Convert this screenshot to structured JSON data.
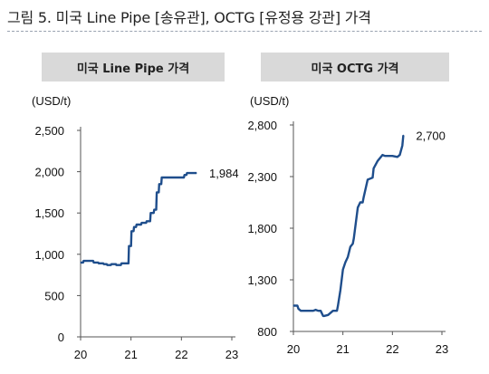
{
  "figure_title": "그림 5. 미국 Line Pipe [송유관], OCTG [유정용 강관] 가격",
  "chart_data": [
    {
      "type": "line",
      "title": "미국 Line Pipe 가격",
      "ylabel": "(USD/t)",
      "ylim": [
        0,
        2500
      ],
      "y_ticks": [
        "0",
        "500",
        "1,000",
        "1,500",
        "2,000",
        "2,500"
      ],
      "y_tick_values": [
        0,
        500,
        1000,
        1500,
        2000,
        2500
      ],
      "xlim": [
        20,
        23
      ],
      "x_ticks": [
        "20",
        "21",
        "22",
        "23"
      ],
      "x_tick_values": [
        20,
        21,
        22,
        23
      ],
      "grid": false,
      "end_label": "1,984",
      "series": [
        {
          "color": "#1f4e8c",
          "x": [
            20.0,
            20.05,
            20.06,
            20.25,
            20.26,
            20.35,
            20.36,
            20.45,
            20.46,
            20.52,
            20.53,
            20.6,
            20.61,
            20.7,
            20.71,
            20.8,
            20.81,
            20.95,
            20.96,
            21.0,
            21.01,
            21.05,
            21.06,
            21.1,
            21.11,
            21.2,
            21.21,
            21.3,
            21.31,
            21.38,
            21.39,
            21.45,
            21.46,
            21.5,
            21.51,
            21.55,
            21.56,
            21.6,
            21.61,
            22.05,
            22.06,
            22.1,
            22.11,
            22.3
          ],
          "y": [
            900,
            900,
            920,
            920,
            900,
            900,
            890,
            890,
            880,
            880,
            870,
            870,
            880,
            880,
            870,
            870,
            890,
            890,
            1100,
            1100,
            1280,
            1280,
            1330,
            1330,
            1360,
            1360,
            1380,
            1380,
            1400,
            1400,
            1500,
            1500,
            1540,
            1540,
            1750,
            1750,
            1850,
            1850,
            1930,
            1930,
            1960,
            1960,
            1984,
            1984
          ]
        }
      ]
    },
    {
      "type": "line",
      "title": "미국 OCTG 가격",
      "ylabel": "(USD/t)",
      "ylim": [
        800,
        2800
      ],
      "y_ticks": [
        "800",
        "1,300",
        "1,800",
        "2,300",
        "2,800"
      ],
      "y_tick_values": [
        800,
        1300,
        1800,
        2300,
        2800
      ],
      "xlim": [
        20,
        23
      ],
      "x_ticks": [
        "20",
        "21",
        "22",
        "23"
      ],
      "x_tick_values": [
        20,
        21,
        22,
        23
      ],
      "grid": false,
      "end_label": "2,700",
      "series": [
        {
          "color": "#1f4e8c",
          "x": [
            20.0,
            20.08,
            20.1,
            20.15,
            20.2,
            20.3,
            20.4,
            20.45,
            20.5,
            20.55,
            20.6,
            20.62,
            20.7,
            20.8,
            20.88,
            20.9,
            20.95,
            21.0,
            21.05,
            21.1,
            21.15,
            21.2,
            21.22,
            21.3,
            21.35,
            21.4,
            21.42,
            21.5,
            21.55,
            21.6,
            21.62,
            21.7,
            21.8,
            21.85,
            22.0,
            22.1,
            22.15,
            22.2,
            22.22
          ],
          "y": [
            1050,
            1050,
            1020,
            1000,
            1000,
            1000,
            1000,
            1010,
            1000,
            1000,
            950,
            950,
            960,
            1000,
            1000,
            1050,
            1200,
            1400,
            1470,
            1520,
            1620,
            1650,
            1700,
            2000,
            2050,
            2050,
            2100,
            2270,
            2280,
            2290,
            2380,
            2450,
            2510,
            2500,
            2500,
            2490,
            2510,
            2600,
            2700
          ]
        }
      ]
    }
  ]
}
